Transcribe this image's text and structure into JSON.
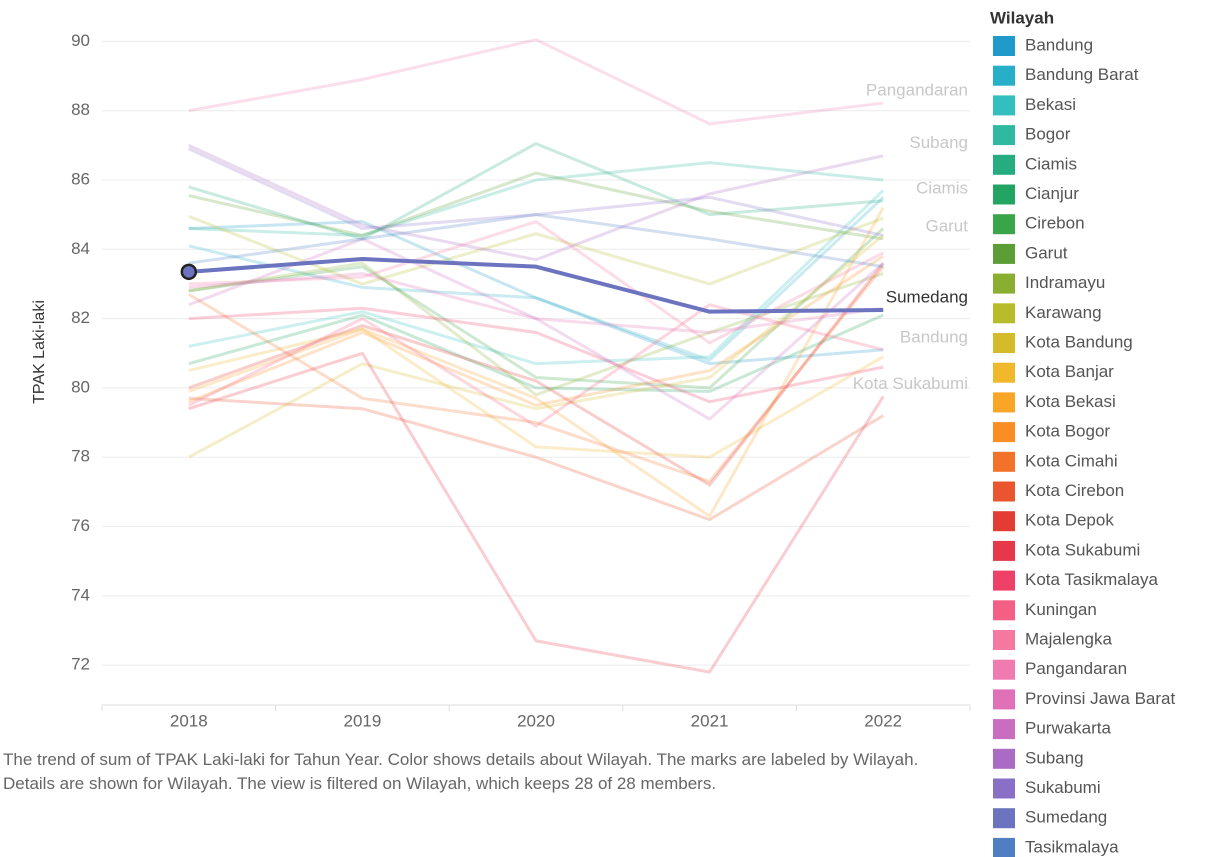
{
  "chart_data": {
    "type": "line",
    "y_label": "TPAK Laki-laki",
    "legend_title": "Wilayah",
    "caption": "The trend of sum of TPAK Laki-laki for Tahun Year.  Color shows details about Wilayah.  The marks are labeled by Wilayah.  Details are shown for Wilayah. The view is filtered on Wilayah, which keeps 28 of 28 members.",
    "categories": [
      "2018",
      "2019",
      "2020",
      "2021",
      "2022"
    ],
    "ylim": [
      70.85,
      91.05
    ],
    "yticks": [
      72,
      74,
      76,
      78,
      80,
      82,
      84,
      86,
      88,
      90
    ],
    "grid": true,
    "highlight": "Sumedang",
    "series": [
      {
        "name": "Bandung",
        "color": "#1f9ac9",
        "values": [
          84.6,
          84.8,
          82.6,
          80.7,
          81.1
        ],
        "label": true
      },
      {
        "name": "Bandung Barat",
        "color": "#27afc9",
        "values": [
          84.1,
          82.9,
          82.6,
          80.8,
          85.5
        ]
      },
      {
        "name": "Bekasi",
        "color": "#33bfbf",
        "values": [
          81.2,
          82.2,
          80.7,
          80.9,
          85.7
        ]
      },
      {
        "name": "Bogor",
        "color": "#2fb9a0",
        "values": [
          84.6,
          84.4,
          86.0,
          86.5,
          86.0
        ]
      },
      {
        "name": "Ciamis",
        "color": "#25ad80",
        "values": [
          85.8,
          84.3,
          87.05,
          85.0,
          85.4
        ],
        "label": true
      },
      {
        "name": "Cianjur",
        "color": "#22a463",
        "values": [
          80.7,
          82.1,
          80.0,
          79.9,
          82.1
        ]
      },
      {
        "name": "Cirebon",
        "color": "#3aa449",
        "values": [
          82.8,
          83.5,
          80.3,
          80.0,
          84.6
        ]
      },
      {
        "name": "Garut",
        "color": "#5a9e35",
        "values": [
          85.55,
          84.4,
          86.2,
          85.1,
          84.3
        ],
        "label": true
      },
      {
        "name": "Indramayu",
        "color": "#8aae2f",
        "values": [
          82.8,
          83.6,
          79.8,
          81.6,
          83.3
        ]
      },
      {
        "name": "Karawang",
        "color": "#b8bc2a",
        "values": [
          84.95,
          83.0,
          84.45,
          83.0,
          84.9
        ]
      },
      {
        "name": "Kota Bandung",
        "color": "#d5bb2a",
        "values": [
          78.0,
          80.7,
          79.4,
          80.3,
          84.4
        ]
      },
      {
        "name": "Kota Banjar",
        "color": "#f0b82a",
        "values": [
          80.5,
          81.7,
          78.3,
          78.0,
          80.9
        ]
      },
      {
        "name": "Kota Bekasi",
        "color": "#f9a526",
        "values": [
          79.9,
          81.7,
          79.7,
          76.3,
          85.2
        ]
      },
      {
        "name": "Kota Bogor",
        "color": "#fa8e24",
        "values": [
          79.6,
          81.6,
          79.5,
          80.5,
          83.8
        ]
      },
      {
        "name": "Kota Cimahi",
        "color": "#f3722a",
        "values": [
          82.7,
          79.7,
          79.0,
          77.3,
          83.5
        ]
      },
      {
        "name": "Kota Cirebon",
        "color": "#ea5530",
        "values": [
          79.7,
          79.4,
          78.0,
          76.2,
          79.2
        ]
      },
      {
        "name": "Kota Depok",
        "color": "#e43b32",
        "values": [
          80.0,
          81.8,
          80.2,
          77.2,
          83.6
        ]
      },
      {
        "name": "Kota Sukabumi",
        "color": "#e6384a",
        "values": [
          79.4,
          81.0,
          72.7,
          71.8,
          79.75
        ],
        "label": true
      },
      {
        "name": "Kota Tasikmalaya",
        "color": "#ef4067",
        "values": [
          82.0,
          82.3,
          81.6,
          79.6,
          80.6
        ]
      },
      {
        "name": "Kuningan",
        "color": "#f45f85",
        "values": [
          79.5,
          82.0,
          78.9,
          82.4,
          81.1
        ]
      },
      {
        "name": "Majalengka",
        "color": "#f578a0",
        "values": [
          83.0,
          83.2,
          84.8,
          81.3,
          83.9
        ]
      },
      {
        "name": "Pangandaran",
        "color": "#ef7bb0",
        "values": [
          88.0,
          88.9,
          90.05,
          87.62,
          88.22
        ],
        "label": true
      },
      {
        "name": "Provinsi Jawa Barat",
        "color": "#e070b7",
        "values": [
          82.9,
          83.3,
          82.0,
          81.6,
          82.3
        ]
      },
      {
        "name": "Purwakarta",
        "color": "#ca6dc0",
        "values": [
          82.4,
          84.3,
          82.0,
          79.1,
          83.6
        ]
      },
      {
        "name": "Subang",
        "color": "#aa6bc4",
        "values": [
          87.0,
          84.7,
          83.7,
          85.6,
          86.7
        ],
        "label": true
      },
      {
        "name": "Sukabumi",
        "color": "#8a6fc7",
        "values": [
          86.9,
          84.6,
          85.0,
          85.5,
          84.4
        ]
      },
      {
        "name": "Sumedang",
        "color": "#6c74c0",
        "values": [
          83.35,
          83.72,
          83.5,
          82.2,
          82.25
        ],
        "label": true
      },
      {
        "name": "Tasikmalaya",
        "color": "#4f7fc2",
        "values": [
          83.6,
          84.3,
          85.0,
          84.3,
          83.5
        ]
      }
    ]
  }
}
